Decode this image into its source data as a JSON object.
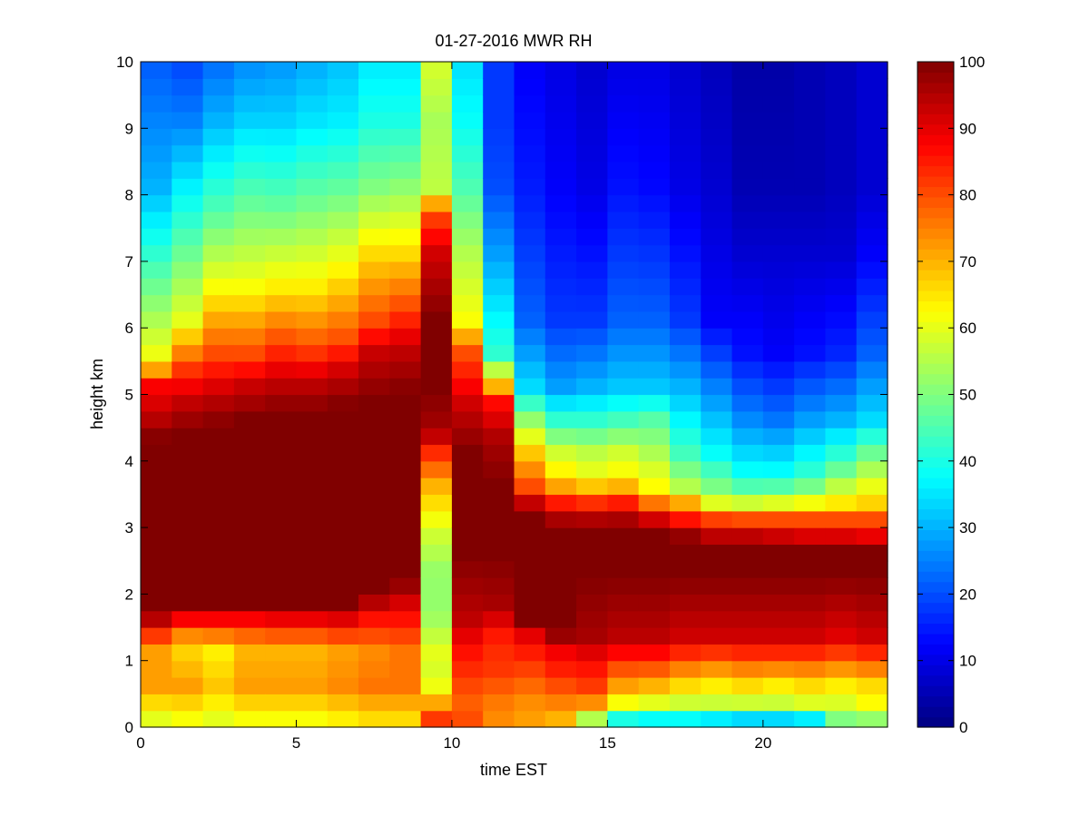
{
  "chart_data": {
    "type": "heatmap",
    "title": "01-27-2016 MWR RH",
    "xlabel": "time EST",
    "ylabel": "height km",
    "xlim": [
      0,
      24
    ],
    "ylim": [
      0,
      10
    ],
    "xticks": [
      "0",
      "5",
      "10",
      "15",
      "20"
    ],
    "yticks": [
      "0",
      "1",
      "2",
      "3",
      "4",
      "5",
      "6",
      "7",
      "8",
      "9",
      "10"
    ],
    "colorbar": {
      "colormap": "jet",
      "range": [
        0,
        100
      ],
      "ticks": [
        "0",
        "10",
        "20",
        "30",
        "40",
        "50",
        "60",
        "70",
        "80",
        "90",
        "100"
      ]
    },
    "cell_width_hours": 1,
    "time_bins": [
      0,
      1,
      2,
      3,
      4,
      5,
      6,
      7,
      8,
      9,
      10,
      11,
      12,
      13,
      14,
      15,
      16,
      17,
      18,
      19,
      20,
      21,
      22,
      23
    ],
    "height_km": [
      0,
      0.25,
      0.5,
      0.75,
      1,
      1.25,
      1.5,
      1.75,
      2,
      2.25,
      2.5,
      2.75,
      3,
      3.25,
      3.5,
      3.75,
      4,
      4.25,
      4.5,
      4.75,
      5,
      5.25,
      5.5,
      5.75,
      6,
      6.25,
      6.5,
      6.75,
      7,
      7.25,
      7.5,
      7.75,
      8,
      8.25,
      8.5,
      8.75,
      9,
      9.25,
      9.5,
      9.75
    ],
    "profiles": [
      {
        "t": 0,
        "h": [
          0,
          0.5,
          1,
          1.3,
          1.6,
          3.3,
          4.2,
          4.6,
          5,
          5.4,
          7,
          8,
          9.75
        ],
        "rh": [
          60,
          72,
          72,
          84,
          100,
          100,
          100,
          93,
          88,
          62,
          42,
          30,
          22
        ]
      },
      {
        "t": 1,
        "h": [
          0,
          0.5,
          1.1,
          1.4,
          1.7,
          3.3,
          4.3,
          4.8,
          5.2,
          6,
          7.5,
          9,
          9.75
        ],
        "rh": [
          62,
          72,
          66,
          82,
          100,
          100,
          100,
          93,
          84,
          60,
          42,
          25,
          20
        ]
      },
      {
        "t": 2,
        "h": [
          0,
          0.5,
          1,
          1.4,
          1.7,
          3.3,
          4.4,
          4.9,
          5.4,
          6.5,
          7.6,
          9,
          9.75
        ],
        "rh": [
          60,
          68,
          64,
          82,
          100,
          100,
          100,
          93,
          82,
          62,
          46,
          30,
          24
        ]
      },
      {
        "t": 3,
        "h": [
          0,
          0.5,
          1,
          1.4,
          1.7,
          3.3,
          4.5,
          5,
          5.5,
          6.5,
          7.7,
          9,
          9.75
        ],
        "rh": [
          62,
          72,
          70,
          82,
          100,
          100,
          100,
          93,
          80,
          62,
          48,
          33,
          27
        ]
      },
      {
        "t": 4,
        "h": [
          0,
          0.5,
          1,
          1.4,
          1.7,
          3.3,
          4.6,
          5.1,
          5.6,
          6.5,
          7.8,
          9,
          9.75
        ],
        "rh": [
          62,
          72,
          70,
          84,
          100,
          100,
          100,
          93,
          82,
          64,
          46,
          33,
          28
        ]
      },
      {
        "t": 5,
        "h": [
          0,
          0.5,
          1,
          1.4,
          1.7,
          3.3,
          4.6,
          5.1,
          5.6,
          6.5,
          7.8,
          9,
          9.75
        ],
        "rh": [
          62,
          72,
          70,
          84,
          100,
          100,
          100,
          93,
          80,
          64,
          48,
          35,
          30
        ]
      },
      {
        "t": 6,
        "h": [
          0,
          0.5,
          1,
          1.4,
          1.7,
          3.3,
          4.7,
          5.2,
          5.7,
          6.7,
          7.9,
          9,
          9.75
        ],
        "rh": [
          64,
          74,
          72,
          86,
          100,
          100,
          100,
          93,
          80,
          64,
          48,
          36,
          32
        ]
      },
      {
        "t": 7,
        "h": [
          0,
          0.5,
          1,
          1.5,
          1.9,
          3.3,
          4.8,
          5.5,
          6,
          7,
          8,
          9,
          9.75
        ],
        "rh": [
          66,
          76,
          74,
          86,
          100,
          100,
          100,
          93,
          80,
          66,
          50,
          40,
          36
        ]
      },
      {
        "t": 8,
        "h": [
          0,
          0.5,
          1,
          1.6,
          2.1,
          3.3,
          4.9,
          5.6,
          6.1,
          7,
          8.1,
          9,
          9.75
        ],
        "rh": [
          66,
          76,
          76,
          88,
          100,
          100,
          100,
          93,
          82,
          66,
          50,
          40,
          36
        ]
      },
      {
        "t": 9,
        "h": [
          0,
          0.1,
          0.4,
          0.6,
          1,
          1.6,
          2.2,
          2.8,
          3.5,
          4.1,
          4.3,
          5,
          6,
          7,
          7.6,
          8,
          9,
          9.75
        ],
        "rh": [
          82,
          78,
          64,
          58,
          60,
          52,
          52,
          58,
          70,
          86,
          96,
          100,
          100,
          92,
          80,
          56,
          54,
          58
        ]
      },
      {
        "t": 10,
        "h": [
          0,
          0.3,
          0.6,
          1,
          1.5,
          2.5,
          4,
          4.7,
          5,
          5.5,
          6,
          7,
          8,
          9,
          9.75
        ],
        "rh": [
          80,
          78,
          82,
          86,
          94,
          100,
          100,
          93,
          88,
          80,
          62,
          55,
          45,
          38,
          35
        ]
      },
      {
        "t": 11,
        "h": [
          0,
          0.3,
          0.7,
          1.2,
          1.7,
          2.5,
          3.5,
          4.2,
          4.8,
          5,
          5.5,
          7,
          8,
          9,
          9.75
        ],
        "rh": [
          74,
          76,
          82,
          84,
          96,
          100,
          100,
          96,
          86,
          70,
          42,
          28,
          20,
          18,
          18
        ]
      },
      {
        "t": 12,
        "h": [
          0,
          0.3,
          0.8,
          1.2,
          1.5,
          2.2,
          3,
          3.2,
          3.5,
          4,
          4.5,
          5,
          6,
          8,
          9.75
        ],
        "rh": [
          72,
          74,
          82,
          88,
          100,
          100,
          100,
          96,
          80,
          68,
          52,
          34,
          22,
          15,
          12
        ]
      },
      {
        "t": 13,
        "h": [
          0,
          0.3,
          0.7,
          1.1,
          1.3,
          2.2,
          2.9,
          3.2,
          3.6,
          4,
          4.5,
          5,
          6,
          8,
          9.75
        ],
        "rh": [
          70,
          76,
          84,
          90,
          100,
          100,
          100,
          88,
          66,
          58,
          42,
          28,
          18,
          12,
          10
        ]
      },
      {
        "t": 14,
        "h": [
          0,
          0.2,
          0.5,
          0.9,
          1.2,
          2.2,
          2.9,
          3.2,
          3.6,
          4,
          4.5,
          5,
          6,
          8,
          9.75
        ],
        "rh": [
          55,
          72,
          82,
          88,
          96,
          100,
          100,
          86,
          62,
          56,
          42,
          30,
          18,
          10,
          8
        ]
      },
      {
        "t": 15,
        "h": [
          0,
          0.2,
          0.5,
          0.9,
          1.2,
          2.2,
          2.9,
          3.2,
          3.6,
          4,
          4.5,
          5,
          6,
          8,
          9.75
        ],
        "rh": [
          40,
          60,
          72,
          84,
          94,
          100,
          100,
          88,
          64,
          58,
          44,
          32,
          22,
          14,
          10
        ]
      },
      {
        "t": 16,
        "h": [
          0,
          0.2,
          0.5,
          0.9,
          1.2,
          2.2,
          2.8,
          3.1,
          3.4,
          3.8,
          4.5,
          5,
          6,
          8,
          9.75
        ],
        "rh": [
          38,
          58,
          70,
          84,
          94,
          100,
          100,
          88,
          64,
          58,
          46,
          32,
          22,
          13,
          10
        ]
      },
      {
        "t": 17,
        "h": [
          0,
          0.2,
          0.5,
          0.9,
          1.2,
          2.2,
          2.7,
          2.9,
          3.2,
          3.5,
          4,
          5,
          6,
          8,
          9.75
        ],
        "rh": [
          38,
          56,
          66,
          80,
          92,
          100,
          100,
          92,
          74,
          55,
          44,
          30,
          18,
          10,
          8
        ]
      },
      {
        "t": 18,
        "h": [
          0,
          0.2,
          0.5,
          0.9,
          1.2,
          2.2,
          2.6,
          2.8,
          3.1,
          3.3,
          4,
          5,
          6,
          8,
          9.75
        ],
        "rh": [
          36,
          56,
          64,
          78,
          92,
          100,
          100,
          92,
          76,
          54,
          38,
          25,
          12,
          8,
          6
        ]
      },
      {
        "t": 19,
        "h": [
          0,
          0.2,
          0.5,
          0.9,
          1.2,
          2.2,
          2.6,
          2.8,
          3,
          3.2,
          3.6,
          4.5,
          5.5,
          7,
          8,
          9.75
        ],
        "rh": [
          34,
          56,
          66,
          80,
          92,
          100,
          100,
          92,
          80,
          60,
          40,
          26,
          14,
          8,
          5,
          4
        ]
      },
      {
        "t": 20,
        "h": [
          0,
          0.2,
          0.5,
          0.9,
          1.2,
          2.2,
          2.6,
          2.8,
          3,
          3.2,
          3.6,
          4.5,
          5.5,
          7,
          8,
          9.75
        ],
        "rh": [
          34,
          56,
          64,
          80,
          92,
          100,
          100,
          90,
          80,
          62,
          40,
          24,
          12,
          8,
          5,
          4
        ]
      },
      {
        "t": 21,
        "h": [
          0,
          0.2,
          0.5,
          0.9,
          1.2,
          2.2,
          2.6,
          2.8,
          3,
          3.2,
          3.6,
          4.5,
          5.5,
          7,
          8,
          9.75
        ],
        "rh": [
          36,
          58,
          66,
          80,
          92,
          100,
          100,
          88,
          80,
          64,
          44,
          28,
          14,
          8,
          5,
          5
        ]
      },
      {
        "t": 22,
        "h": [
          0,
          0.2,
          0.5,
          0.9,
          1.2,
          2.2,
          2.6,
          2.8,
          3,
          3.2,
          3.8,
          4.5,
          5.5,
          7,
          8,
          9.75
        ],
        "rh": [
          50,
          58,
          64,
          78,
          90,
          100,
          100,
          88,
          80,
          66,
          46,
          30,
          16,
          8,
          6,
          6
        ]
      },
      {
        "t": 23,
        "h": [
          0,
          0.2,
          0.5,
          0.9,
          1.2,
          2.2,
          2.6,
          2.8,
          3,
          3.2,
          4,
          4.5,
          5.5,
          7,
          8,
          9.75
        ],
        "rh": [
          52,
          62,
          66,
          80,
          92,
          100,
          100,
          86,
          80,
          68,
          48,
          34,
          22,
          12,
          8,
          8
        ]
      }
    ]
  }
}
